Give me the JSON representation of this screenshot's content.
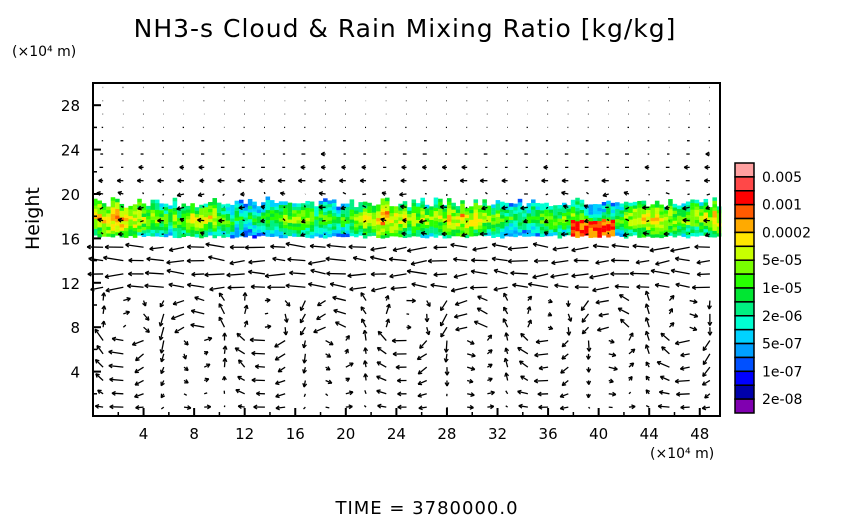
{
  "chart_data": {
    "type": "heatmap",
    "title": "NH3-s Cloud & Rain Mixing Ratio [kg/kg]",
    "xlabel": "",
    "ylabel": "Height",
    "x_unit": "(×10⁴ m)",
    "y_unit": "(×10⁴ m)",
    "xlim": [
      0,
      49.6
    ],
    "ylim": [
      0,
      30
    ],
    "x_ticks": [
      "4",
      "8",
      "12",
      "16",
      "20",
      "24",
      "28",
      "32",
      "36",
      "40",
      "44",
      "48"
    ],
    "y_ticks": [
      "4",
      "8",
      "12",
      "16",
      "20",
      "24",
      "28"
    ],
    "colorbar": {
      "labels": [
        "0.005",
        "0.001",
        "0.0002",
        "5e-05",
        "1e-05",
        "2e-06",
        "5e-07",
        "1e-07",
        "2e-08"
      ],
      "colors": [
        "#ffa0a0",
        "#ff4848",
        "#ff0000",
        "#ff5a00",
        "#ffaa00",
        "#ffe600",
        "#c8ff00",
        "#78ff00",
        "#28ff00",
        "#00e632",
        "#00f082",
        "#00ffd2",
        "#00d2ff",
        "#00a0ff",
        "#0050ff",
        "#0000ff",
        "#0000aa",
        "#8000b0"
      ]
    },
    "cloud_layer_height_range": [
      16,
      19.5
    ],
    "overlay": "wind vectors; circulation cells below height 16",
    "legend": "right"
  },
  "footer": {
    "time_label": "TIME = 3780000.0"
  }
}
